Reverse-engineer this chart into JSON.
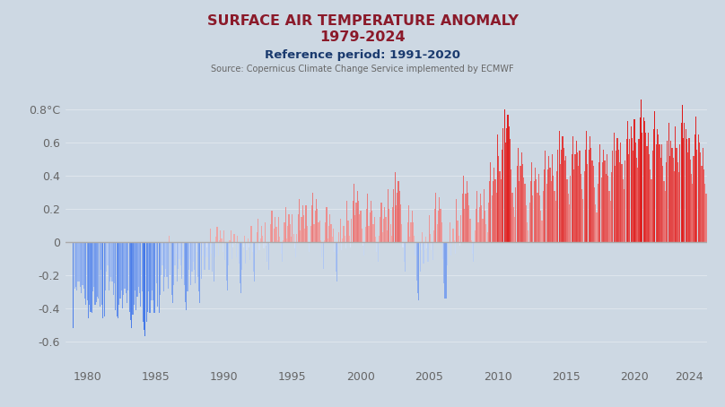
{
  "title_line1": "SURFACE AIR TEMPERATURE ANOMALY",
  "title_line2": "1979-2024",
  "subtitle": "Reference period: 1991-2020",
  "source": "Source: Copernicus Climate Change Service implemented by ECMWF",
  "title_color": "#8B1A2A",
  "subtitle_color": "#1a3a6e",
  "source_color": "#666666",
  "bg_color": "#cdd8e3",
  "yticks": [
    0.8,
    0.6,
    0.4,
    0.2,
    0.0,
    -0.2,
    -0.4,
    -0.6
  ],
  "ytick_labels": [
    "0.8°C",
    "0.6",
    "0.4",
    "0.2",
    "0",
    "-0.2",
    "-0.4",
    "-0.6"
  ],
  "xticks": [
    1980,
    1985,
    1990,
    1995,
    2000,
    2005,
    2010,
    2015,
    2020,
    2024
  ],
  "ylim": [
    -0.75,
    0.97
  ],
  "xlim": [
    1978.4,
    2025.3
  ],
  "anomalies": [
    -0.52,
    -0.28,
    -0.27,
    -0.29,
    -0.24,
    -0.24,
    -0.27,
    -0.31,
    -0.26,
    -0.28,
    -0.34,
    -0.38,
    -0.35,
    -0.46,
    -0.38,
    -0.42,
    -0.43,
    -0.3,
    -0.27,
    -0.38,
    -0.36,
    -0.33,
    -0.34,
    -0.39,
    -0.17,
    -0.38,
    -0.46,
    -0.45,
    -0.29,
    -0.18,
    -0.14,
    -0.29,
    -0.24,
    -0.21,
    -0.24,
    -0.32,
    -0.25,
    -0.41,
    -0.45,
    -0.46,
    -0.38,
    -0.34,
    -0.29,
    -0.4,
    -0.32,
    -0.28,
    -0.31,
    -0.37,
    -0.29,
    -0.42,
    -0.47,
    -0.52,
    -0.44,
    -0.38,
    -0.29,
    -0.41,
    -0.33,
    -0.27,
    -0.31,
    -0.39,
    -0.3,
    -0.48,
    -0.53,
    -0.57,
    -0.48,
    -0.42,
    -0.3,
    -0.43,
    -0.35,
    -0.29,
    -0.35,
    -0.43,
    -0.11,
    -0.25,
    -0.39,
    -0.43,
    -0.32,
    -0.2,
    -0.14,
    -0.3,
    -0.21,
    -0.16,
    -0.21,
    -0.28,
    0.04,
    -0.2,
    -0.32,
    -0.37,
    -0.26,
    -0.14,
    -0.07,
    -0.24,
    -0.16,
    -0.1,
    -0.14,
    -0.22,
    -0.09,
    -0.26,
    -0.36,
    -0.41,
    -0.3,
    -0.17,
    -0.1,
    -0.26,
    -0.18,
    -0.12,
    -0.17,
    -0.25,
    -0.06,
    -0.21,
    -0.3,
    -0.37,
    -0.22,
    -0.08,
    0.0,
    -0.17,
    -0.09,
    -0.03,
    -0.09,
    -0.17,
    0.08,
    -0.07,
    -0.18,
    -0.24,
    -0.09,
    0.03,
    0.09,
    -0.08,
    0.01,
    0.07,
    0.02,
    -0.06,
    0.07,
    -0.11,
    -0.23,
    -0.29,
    -0.14,
    0.01,
    0.07,
    -0.1,
    -0.03,
    0.05,
    -0.01,
    -0.09,
    0.04,
    -0.13,
    -0.25,
    -0.31,
    -0.17,
    -0.03,
    0.04,
    -0.13,
    -0.05,
    0.02,
    -0.03,
    -0.11,
    0.1,
    -0.06,
    -0.18,
    -0.24,
    -0.07,
    0.06,
    0.14,
    -0.05,
    0.02,
    0.1,
    0.04,
    -0.04,
    0.12,
    -0.02,
    -0.12,
    -0.17,
    -0.01,
    0.11,
    0.19,
    0.0,
    0.08,
    0.15,
    0.09,
    0.01,
    0.15,
    0.03,
    -0.07,
    -0.12,
    0.01,
    0.12,
    0.21,
    0.02,
    0.1,
    0.17,
    0.11,
    0.03,
    0.17,
    0.05,
    -0.04,
    -0.09,
    0.05,
    0.17,
    0.26,
    0.07,
    0.15,
    0.22,
    0.16,
    0.08,
    0.22,
    0.1,
    0.0,
    -0.06,
    0.1,
    0.22,
    0.3,
    0.11,
    0.19,
    0.26,
    0.2,
    0.12,
    0.13,
    0.01,
    -0.09,
    -0.16,
    0.01,
    0.12,
    0.21,
    0.02,
    0.1,
    0.17,
    0.11,
    0.03,
    0.08,
    -0.06,
    -0.18,
    -0.24,
    -0.07,
    0.06,
    0.14,
    -0.05,
    0.02,
    0.1,
    0.04,
    -0.04,
    0.25,
    0.13,
    0.04,
    -0.03,
    0.14,
    0.25,
    0.35,
    0.16,
    0.24,
    0.31,
    0.25,
    0.17,
    0.19,
    0.08,
    -0.02,
    -0.08,
    0.09,
    0.2,
    0.29,
    0.1,
    0.18,
    0.25,
    0.19,
    0.11,
    0.15,
    0.03,
    -0.06,
    -0.12,
    0.04,
    0.15,
    0.24,
    0.06,
    0.14,
    0.21,
    0.15,
    0.07,
    0.32,
    0.2,
    0.11,
    0.04,
    0.21,
    0.32,
    0.42,
    0.22,
    0.3,
    0.37,
    0.31,
    0.23,
    0.11,
    -0.03,
    -0.12,
    -0.18,
    0.0,
    0.12,
    0.22,
    0.03,
    0.12,
    0.19,
    0.12,
    0.04,
    -0.08,
    -0.23,
    -0.31,
    -0.35,
    -0.18,
    -0.05,
    0.06,
    -0.13,
    -0.05,
    0.03,
    -0.04,
    -0.12,
    0.16,
    0.05,
    -0.05,
    -0.11,
    0.07,
    0.2,
    0.3,
    0.11,
    0.19,
    0.27,
    0.2,
    0.12,
    -0.1,
    -0.25,
    -0.34,
    -0.34,
    -0.14,
    0.0,
    0.12,
    -0.08,
    0.0,
    0.08,
    0.01,
    -0.07,
    0.26,
    0.13,
    0.04,
    -0.02,
    0.16,
    0.29,
    0.4,
    0.2,
    0.29,
    0.37,
    0.3,
    0.22,
    0.14,
    0.01,
    -0.07,
    -0.12,
    0.07,
    0.2,
    0.31,
    0.12,
    0.21,
    0.29,
    0.22,
    0.14,
    0.32,
    0.19,
    0.11,
    0.06,
    0.24,
    0.37,
    0.48,
    0.28,
    0.37,
    0.45,
    0.38,
    0.3,
    0.65,
    0.52,
    0.43,
    0.38,
    0.56,
    0.69,
    0.8,
    0.6,
    0.69,
    0.77,
    0.7,
    0.62,
    0.44,
    0.3,
    0.21,
    0.15,
    0.33,
    0.46,
    0.57,
    0.37,
    0.46,
    0.54,
    0.47,
    0.39,
    0.35,
    0.22,
    0.12,
    0.07,
    0.24,
    0.37,
    0.48,
    0.28,
    0.37,
    0.45,
    0.38,
    0.3,
    0.41,
    0.28,
    0.19,
    0.13,
    0.31,
    0.44,
    0.55,
    0.35,
    0.44,
    0.52,
    0.45,
    0.37,
    0.53,
    0.4,
    0.31,
    0.25,
    0.43,
    0.56,
    0.67,
    0.47,
    0.56,
    0.64,
    0.57,
    0.49,
    0.52,
    0.38,
    0.29,
    0.23,
    0.4,
    0.53,
    0.64,
    0.44,
    0.53,
    0.61,
    0.54,
    0.46,
    0.55,
    0.41,
    0.32,
    0.26,
    0.43,
    0.56,
    0.67,
    0.47,
    0.56,
    0.64,
    0.57,
    0.49,
    0.46,
    0.33,
    0.23,
    0.18,
    0.35,
    0.48,
    0.59,
    0.39,
    0.48,
    0.56,
    0.49,
    0.41,
    0.53,
    0.4,
    0.31,
    0.25,
    0.42,
    0.55,
    0.66,
    0.46,
    0.55,
    0.63,
    0.56,
    0.48,
    0.6,
    0.47,
    0.38,
    0.32,
    0.49,
    0.62,
    0.73,
    0.53,
    0.62,
    0.7,
    0.63,
    0.55,
    0.74,
    0.6,
    0.51,
    0.45,
    0.62,
    0.75,
    0.86,
    0.66,
    0.75,
    0.73,
    0.66,
    0.58,
    0.66,
    0.53,
    0.44,
    0.38,
    0.55,
    0.68,
    0.79,
    0.59,
    0.68,
    0.65,
    0.59,
    0.51,
    0.59,
    0.46,
    0.37,
    0.31,
    0.48,
    0.61,
    0.72,
    0.52,
    0.61,
    0.57,
    0.51,
    0.43,
    0.7,
    0.57,
    0.48,
    0.42,
    0.59,
    0.72,
    0.83,
    0.63,
    0.72,
    0.68,
    0.62,
    0.54,
    0.63,
    0.5,
    0.41,
    0.35,
    0.52,
    0.65,
    0.76,
    0.56,
    0.65,
    0.6,
    0.54,
    0.46,
    0.57,
    0.44,
    0.35,
    0.29,
    0.46,
    0.59,
    0.7,
    0.5,
    0.59,
    0.53,
    0.47,
    0.39,
    0.63,
    0.5,
    0.41,
    0.35,
    0.52,
    0.65,
    0.76,
    0.56,
    0.65,
    0.59
  ]
}
